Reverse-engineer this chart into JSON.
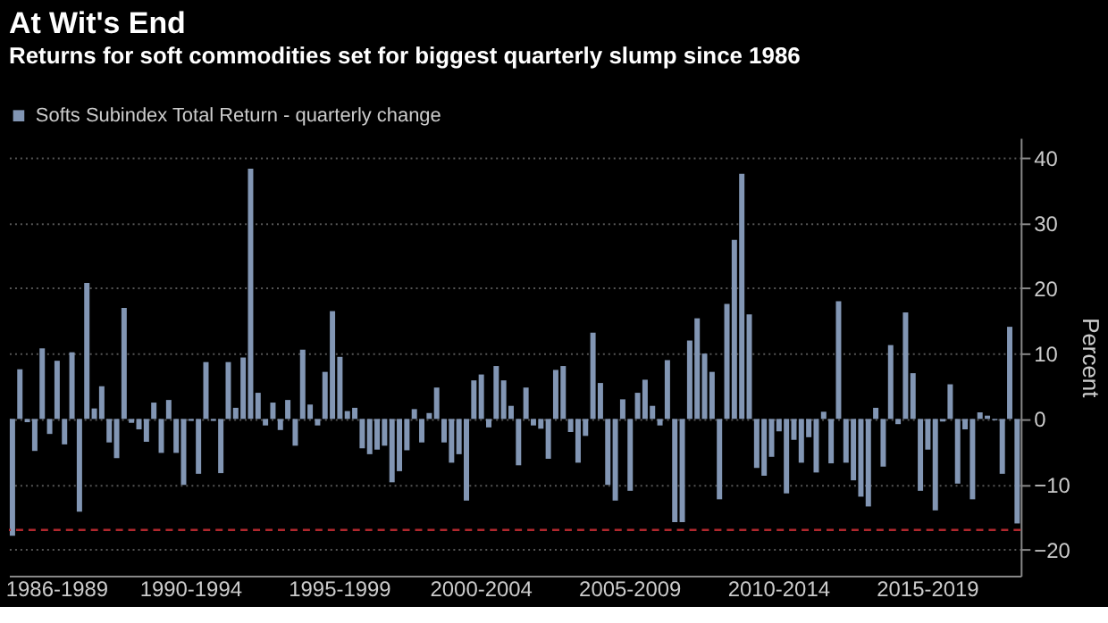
{
  "chart_data": {
    "type": "bar",
    "title": "At Wit's End",
    "subtitle": "Returns for soft commodities set for biggest quarterly slump since 1986",
    "ylabel": "Percent",
    "categories": [
      null,
      null,
      null,
      null,
      null,
      null,
      "1986-1989",
      null,
      null,
      null,
      null,
      null,
      null,
      null,
      null,
      null,
      null,
      null,
      null,
      null,
      null,
      null,
      null,
      null,
      "1990-1994",
      null,
      null,
      null,
      null,
      null,
      null,
      null,
      null,
      null,
      null,
      null,
      null,
      null,
      null,
      null,
      null,
      null,
      null,
      null,
      "1995-1999",
      null,
      null,
      null,
      null,
      null,
      null,
      null,
      null,
      null,
      null,
      null,
      null,
      null,
      null,
      null,
      null,
      null,
      null,
      "2000-2004",
      null,
      null,
      null,
      null,
      null,
      null,
      null,
      null,
      null,
      null,
      null,
      null,
      null,
      null,
      null,
      null,
      null,
      null,
      null,
      "2005-2009",
      null,
      null,
      null,
      null,
      null,
      null,
      null,
      null,
      null,
      null,
      null,
      null,
      null,
      null,
      null,
      null,
      null,
      null,
      null,
      "2010-2014",
      null,
      null,
      null,
      null,
      null,
      null,
      null,
      null,
      null,
      null,
      null,
      null,
      null,
      null,
      null,
      null,
      null,
      null,
      null,
      "2015-2019",
      null,
      null,
      null,
      null,
      null,
      null,
      null,
      null,
      null,
      null,
      null,
      null
    ],
    "series": [
      {
        "name": "Softs Subindex Total Return - quarterly change",
        "color": "#8296b4",
        "values": [
          -17.9,
          7.6,
          -0.5,
          -4.9,
          10.8,
          -2.3,
          8.9,
          -3.9,
          10.2,
          -14.2,
          20.8,
          1.6,
          5.0,
          -3.6,
          -6.0,
          17.0,
          -0.6,
          -1.6,
          -3.5,
          2.5,
          -5.2,
          2.9,
          -5.2,
          -10.1,
          -0.3,
          -8.4,
          8.7,
          -0.3,
          -8.3,
          8.7,
          1.7,
          9.4,
          38.3,
          4.0,
          -1.0,
          2.5,
          -1.7,
          2.9,
          -4.1,
          10.6,
          2.2,
          -1.0,
          7.2,
          16.5,
          9.5,
          1.2,
          1.7,
          -4.5,
          -5.4,
          -4.7,
          -4.1,
          -9.7,
          -8.0,
          -4.8,
          1.5,
          -3.6,
          0.9,
          4.8,
          -3.6,
          -6.7,
          -5.4,
          -12.5,
          5.9,
          6.8,
          -1.3,
          8.1,
          5.9,
          2.0,
          -7.1,
          4.8,
          -1.0,
          -1.5,
          -6.1,
          7.5,
          8.1,
          -2.0,
          -6.7,
          -2.6,
          13.2,
          5.5,
          -10.1,
          -12.5,
          3.0,
          -11.0,
          4.0,
          6.0,
          2.0,
          -1.0,
          9.0,
          -15.8,
          -15.8,
          12.0,
          15.4,
          10.0,
          7.2,
          -12.3,
          17.6,
          27.4,
          37.5,
          16.0,
          -7.5,
          -8.7,
          -5.8,
          -1.9,
          -11.4,
          -3.2,
          -6.7,
          -2.8,
          -8.2,
          1.1,
          -6.8,
          18.0,
          -6.7,
          -9.4,
          -11.9,
          -13.4,
          1.7,
          -7.3,
          11.3,
          -0.8,
          16.3,
          7.0,
          -11.0,
          -4.7,
          -14.0,
          -0.4,
          5.3,
          -9.9,
          -1.6,
          -12.3,
          1.0,
          0.5,
          -0.2,
          -8.4,
          14.1,
          -16.0
        ]
      }
    ],
    "ylim": [
      -24,
      43
    ],
    "yticks": [
      -20,
      -10,
      0,
      10,
      20,
      30,
      40
    ],
    "grid": "y",
    "legend": "top left",
    "ref_lines": [
      {
        "axis": "y",
        "value": -17,
        "color": "#b0282e",
        "line_style": "dashed"
      }
    ]
  }
}
